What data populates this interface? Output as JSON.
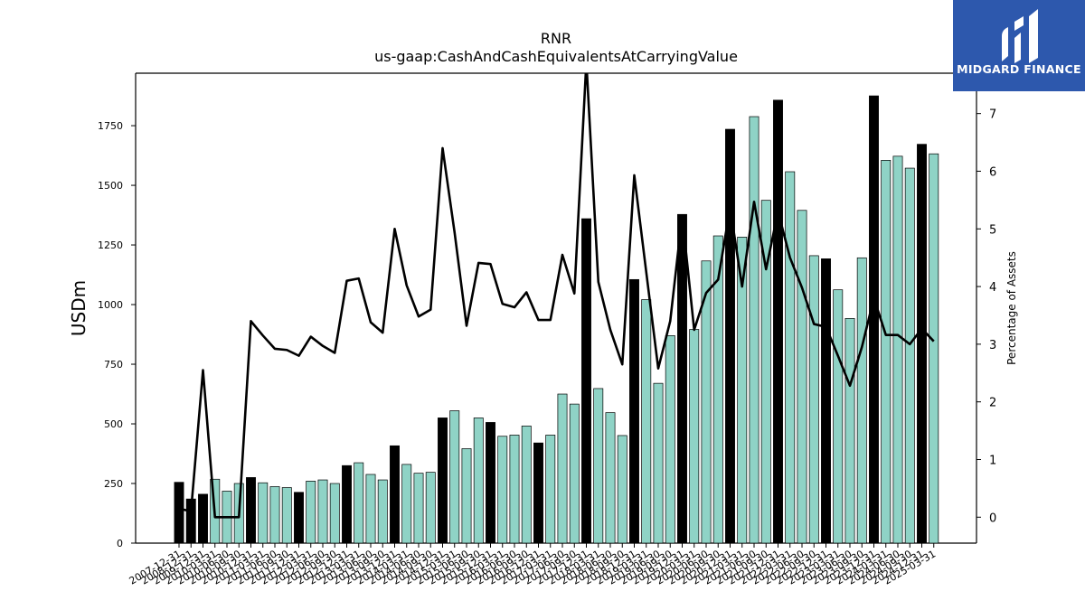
{
  "chart_data": {
    "type": "bar",
    "title": "RNR",
    "subtitle": "us-gaap:CashAndCashEquivalentsAtCarryingValue",
    "ylabel": "USDm",
    "y2label": "Percentage of Assets",
    "ylim": [
      0,
      1970
    ],
    "y2lim": [
      -0.45,
      7.7
    ],
    "yticks": [
      0,
      250,
      500,
      750,
      1000,
      1250,
      1500,
      1750
    ],
    "y2ticks": [
      0,
      1,
      2,
      3,
      4,
      5,
      6,
      7
    ],
    "grid": false,
    "colors": {
      "annual": "#000000",
      "quarterly": "#8fd3c6",
      "line": "#000000"
    },
    "categories": [
      "2007-12-31",
      "2008-12-31",
      "2009-12-31",
      "2010-03-31",
      "2010-06-30",
      "2010-09-30",
      "2010-12-31",
      "2011-03-31",
      "2011-06-30",
      "2011-09-30",
      "2011-12-31",
      "2012-03-31",
      "2012-06-30",
      "2012-09-30",
      "2012-12-31",
      "2013-03-31",
      "2013-06-30",
      "2013-09-30",
      "2013-12-31",
      "2014-03-31",
      "2014-06-30",
      "2014-09-30",
      "2014-12-31",
      "2015-03-31",
      "2015-06-30",
      "2015-09-30",
      "2015-12-31",
      "2016-03-31",
      "2016-06-30",
      "2016-09-30",
      "2016-12-31",
      "2017-03-31",
      "2017-06-30",
      "2017-09-30",
      "2017-12-31",
      "2018-03-31",
      "2018-06-30",
      "2018-09-30",
      "2018-12-31",
      "2019-03-31",
      "2019-06-30",
      "2019-09-30",
      "2019-12-31",
      "2020-03-31",
      "2020-06-30",
      "2020-09-30",
      "2020-12-31",
      "2021-03-31",
      "2021-06-30",
      "2021-09-30",
      "2021-12-31",
      "2022-03-31",
      "2022-06-30",
      "2022-09-30",
      "2022-12-31",
      "2023-03-31",
      "2023-06-30",
      "2023-09-30",
      "2023-12-31",
      "2024-03-31",
      "2024-06-30",
      "2024-09-30",
      "2024-12-31",
      "2025-03-31"
    ],
    "series": [
      {
        "kind": "bar",
        "values": [
          255,
          185,
          205,
          268,
          218,
          250,
          275,
          253,
          237,
          233,
          213,
          260,
          265,
          250,
          325,
          337,
          288,
          265,
          408,
          330,
          293,
          297,
          525,
          555,
          396,
          525,
          506,
          448,
          453,
          491,
          420,
          453,
          625,
          583,
          1360,
          648,
          547,
          451,
          1105,
          1021,
          670,
          870,
          1378,
          896,
          1183,
          1288,
          1735,
          1283,
          1788,
          1437,
          1857,
          1557,
          1395,
          1205,
          1192,
          1062,
          942,
          1196,
          1875,
          1605,
          1622,
          1572,
          1672,
          1632
        ],
        "annual": [
          true,
          true,
          true,
          false,
          false,
          false,
          true,
          false,
          false,
          false,
          true,
          false,
          false,
          false,
          true,
          false,
          false,
          false,
          true,
          false,
          false,
          false,
          true,
          false,
          false,
          false,
          true,
          false,
          false,
          false,
          true,
          false,
          false,
          false,
          true,
          false,
          false,
          false,
          true,
          false,
          false,
          false,
          true,
          false,
          false,
          false,
          true,
          false,
          false,
          false,
          true,
          false,
          false,
          false,
          true,
          false,
          false,
          false,
          true,
          false,
          false,
          false,
          true,
          false
        ]
      },
      {
        "kind": "line",
        "values": [
          0.15,
          0.1,
          2.55,
          0.0,
          0.0,
          0.0,
          3.4,
          3.15,
          2.92,
          2.9,
          2.8,
          3.13,
          2.97,
          2.85,
          4.1,
          4.14,
          3.38,
          3.2,
          5.0,
          4.02,
          3.48,
          3.6,
          6.4,
          4.94,
          3.32,
          4.41,
          4.39,
          3.7,
          3.64,
          3.9,
          3.42,
          3.42,
          4.55,
          3.88,
          7.9,
          4.08,
          3.25,
          2.65,
          5.93,
          4.25,
          2.58,
          3.4,
          5.23,
          3.25,
          3.89,
          4.12,
          5.37,
          4.0,
          5.47,
          4.3,
          5.3,
          4.5,
          3.98,
          3.35,
          3.3,
          2.8,
          2.28,
          2.95,
          3.8,
          3.16,
          3.16,
          3.0,
          3.27,
          3.05
        ]
      }
    ]
  },
  "logo": {
    "text": "MIDGARD FINANCE",
    "bg_color": "#2d58ad"
  }
}
